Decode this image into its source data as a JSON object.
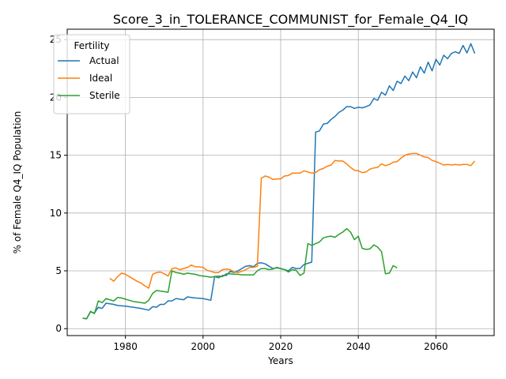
{
  "chart_data": {
    "type": "line",
    "title": "Score_3_in_TOLERANCE_COMMUNIST_for_Female_Q4_IQ",
    "xlabel": "Years",
    "ylabel": "% of Female Q4_IQ Population",
    "xlim": [
      1965,
      2075
    ],
    "ylim": [
      -0.6,
      25.9
    ],
    "xticks": [
      1980,
      2000,
      2020,
      2040,
      2060
    ],
    "yticks": [
      0,
      5,
      10,
      15,
      20,
      25
    ],
    "grid": true,
    "legend": {
      "title": "Fertility",
      "placement": "top-left"
    },
    "series": [
      {
        "name": "Actual",
        "color": "#1f77b4",
        "points": [
          [
            1969,
            0.9
          ],
          [
            1970,
            0.85
          ],
          [
            1971,
            1.45
          ],
          [
            1972,
            1.35
          ],
          [
            1973,
            1.85
          ],
          [
            1974,
            1.75
          ],
          [
            1975,
            2.2
          ],
          [
            1976,
            2.15
          ],
          [
            1977,
            2.1
          ],
          [
            1978,
            2.0
          ],
          [
            1980,
            1.95
          ],
          [
            1982,
            1.85
          ],
          [
            1984,
            1.75
          ],
          [
            1986,
            1.6
          ],
          [
            1987,
            1.9
          ],
          [
            1988,
            1.85
          ],
          [
            1989,
            2.1
          ],
          [
            1990,
            2.1
          ],
          [
            1991,
            2.4
          ],
          [
            1992,
            2.4
          ],
          [
            1993,
            2.6
          ],
          [
            1994,
            2.55
          ],
          [
            1995,
            2.5
          ],
          [
            1996,
            2.75
          ],
          [
            1997,
            2.7
          ],
          [
            1998,
            2.65
          ],
          [
            2000,
            2.6
          ],
          [
            2002,
            2.45
          ],
          [
            2003,
            4.5
          ],
          [
            2004,
            4.4
          ],
          [
            2005,
            4.6
          ],
          [
            2006,
            4.6
          ],
          [
            2007,
            4.95
          ],
          [
            2008,
            4.85
          ],
          [
            2009,
            5.0
          ],
          [
            2010,
            5.2
          ],
          [
            2011,
            5.4
          ],
          [
            2012,
            5.45
          ],
          [
            2013,
            5.35
          ],
          [
            2014,
            5.65
          ],
          [
            2015,
            5.7
          ],
          [
            2016,
            5.6
          ],
          [
            2017,
            5.4
          ],
          [
            2018,
            5.2
          ],
          [
            2019,
            5.25
          ],
          [
            2020,
            5.2
          ],
          [
            2021,
            5.1
          ],
          [
            2022,
            5.0
          ],
          [
            2023,
            5.3
          ],
          [
            2024,
            5.2
          ],
          [
            2025,
            5.2
          ],
          [
            2026,
            5.55
          ],
          [
            2027,
            5.65
          ],
          [
            2028,
            5.75
          ],
          [
            2029,
            17.0
          ],
          [
            2030,
            17.1
          ],
          [
            2031,
            17.7
          ],
          [
            2032,
            17.75
          ],
          [
            2033,
            18.1
          ],
          [
            2034,
            18.35
          ],
          [
            2035,
            18.7
          ],
          [
            2036,
            18.9
          ],
          [
            2037,
            19.2
          ],
          [
            2038,
            19.2
          ],
          [
            2039,
            19.05
          ],
          [
            2040,
            19.15
          ],
          [
            2041,
            19.1
          ],
          [
            2042,
            19.2
          ],
          [
            2043,
            19.35
          ],
          [
            2044,
            19.9
          ],
          [
            2045,
            19.75
          ],
          [
            2046,
            20.45
          ],
          [
            2047,
            20.2
          ],
          [
            2048,
            21.0
          ],
          [
            2049,
            20.6
          ],
          [
            2050,
            21.4
          ],
          [
            2051,
            21.2
          ],
          [
            2052,
            21.85
          ],
          [
            2053,
            21.45
          ],
          [
            2054,
            22.2
          ],
          [
            2055,
            21.7
          ],
          [
            2056,
            22.65
          ],
          [
            2057,
            22.1
          ],
          [
            2058,
            23.05
          ],
          [
            2059,
            22.3
          ],
          [
            2060,
            23.3
          ],
          [
            2061,
            22.8
          ],
          [
            2062,
            23.65
          ],
          [
            2063,
            23.35
          ],
          [
            2064,
            23.8
          ],
          [
            2065,
            23.95
          ],
          [
            2066,
            23.8
          ],
          [
            2067,
            24.5
          ],
          [
            2068,
            23.85
          ],
          [
            2069,
            24.65
          ],
          [
            2070,
            23.8
          ]
        ]
      },
      {
        "name": "Ideal",
        "color": "#ff7f0e",
        "points": [
          [
            1976,
            4.35
          ],
          [
            1977,
            4.1
          ],
          [
            1978,
            4.5
          ],
          [
            1979,
            4.8
          ],
          [
            1980,
            4.7
          ],
          [
            1981,
            4.5
          ],
          [
            1982,
            4.3
          ],
          [
            1983,
            4.1
          ],
          [
            1984,
            3.95
          ],
          [
            1985,
            3.7
          ],
          [
            1986,
            3.5
          ],
          [
            1987,
            4.7
          ],
          [
            1988,
            4.85
          ],
          [
            1989,
            4.9
          ],
          [
            1990,
            4.75
          ],
          [
            1991,
            4.55
          ],
          [
            1992,
            5.2
          ],
          [
            1993,
            5.25
          ],
          [
            1994,
            5.1
          ],
          [
            1995,
            5.2
          ],
          [
            1996,
            5.3
          ],
          [
            1997,
            5.5
          ],
          [
            1998,
            5.35
          ],
          [
            1999,
            5.35
          ],
          [
            2000,
            5.3
          ],
          [
            2001,
            5.05
          ],
          [
            2002,
            4.95
          ],
          [
            2003,
            4.85
          ],
          [
            2004,
            4.85
          ],
          [
            2005,
            5.1
          ],
          [
            2006,
            5.15
          ],
          [
            2007,
            5.1
          ],
          [
            2008,
            4.9
          ],
          [
            2009,
            4.85
          ],
          [
            2010,
            4.95
          ],
          [
            2011,
            5.1
          ],
          [
            2012,
            5.3
          ],
          [
            2013,
            5.3
          ],
          [
            2014,
            5.4
          ],
          [
            2015,
            13.0
          ],
          [
            2016,
            13.2
          ],
          [
            2017,
            13.1
          ],
          [
            2018,
            12.9
          ],
          [
            2019,
            12.95
          ],
          [
            2020,
            12.95
          ],
          [
            2021,
            13.2
          ],
          [
            2022,
            13.25
          ],
          [
            2023,
            13.45
          ],
          [
            2024,
            13.45
          ],
          [
            2025,
            13.45
          ],
          [
            2026,
            13.65
          ],
          [
            2027,
            13.55
          ],
          [
            2028,
            13.45
          ],
          [
            2029,
            13.5
          ],
          [
            2030,
            13.75
          ],
          [
            2031,
            13.85
          ],
          [
            2032,
            14.05
          ],
          [
            2033,
            14.15
          ],
          [
            2034,
            14.55
          ],
          [
            2035,
            14.5
          ],
          [
            2036,
            14.5
          ],
          [
            2037,
            14.25
          ],
          [
            2038,
            13.95
          ],
          [
            2039,
            13.7
          ],
          [
            2040,
            13.65
          ],
          [
            2041,
            13.5
          ],
          [
            2042,
            13.55
          ],
          [
            2043,
            13.8
          ],
          [
            2044,
            13.9
          ],
          [
            2045,
            13.95
          ],
          [
            2046,
            14.25
          ],
          [
            2047,
            14.1
          ],
          [
            2048,
            14.2
          ],
          [
            2049,
            14.4
          ],
          [
            2050,
            14.45
          ],
          [
            2051,
            14.75
          ],
          [
            2052,
            15.0
          ],
          [
            2053,
            15.1
          ],
          [
            2054,
            15.15
          ],
          [
            2055,
            15.15
          ],
          [
            2056,
            15.0
          ],
          [
            2057,
            14.85
          ],
          [
            2058,
            14.8
          ],
          [
            2059,
            14.55
          ],
          [
            2060,
            14.45
          ],
          [
            2061,
            14.3
          ],
          [
            2062,
            14.15
          ],
          [
            2063,
            14.2
          ],
          [
            2064,
            14.15
          ],
          [
            2065,
            14.2
          ],
          [
            2066,
            14.15
          ],
          [
            2067,
            14.2
          ],
          [
            2068,
            14.2
          ],
          [
            2069,
            14.1
          ],
          [
            2070,
            14.5
          ]
        ]
      },
      {
        "name": "Sterile",
        "color": "#2ca02c",
        "points": [
          [
            1969,
            0.9
          ],
          [
            1970,
            0.85
          ],
          [
            1971,
            1.5
          ],
          [
            1972,
            1.3
          ],
          [
            1973,
            2.4
          ],
          [
            1974,
            2.25
          ],
          [
            1975,
            2.6
          ],
          [
            1976,
            2.5
          ],
          [
            1977,
            2.4
          ],
          [
            1978,
            2.7
          ],
          [
            1979,
            2.65
          ],
          [
            1980,
            2.55
          ],
          [
            1981,
            2.45
          ],
          [
            1982,
            2.35
          ],
          [
            1983,
            2.3
          ],
          [
            1984,
            2.25
          ],
          [
            1985,
            2.2
          ],
          [
            1986,
            2.45
          ],
          [
            1987,
            3.05
          ],
          [
            1988,
            3.3
          ],
          [
            1989,
            3.25
          ],
          [
            1990,
            3.2
          ],
          [
            1991,
            3.15
          ],
          [
            1992,
            5.0
          ],
          [
            1993,
            4.85
          ],
          [
            1994,
            4.8
          ],
          [
            1995,
            4.7
          ],
          [
            1996,
            4.8
          ],
          [
            1997,
            4.75
          ],
          [
            1998,
            4.7
          ],
          [
            1999,
            4.6
          ],
          [
            2000,
            4.55
          ],
          [
            2001,
            4.5
          ],
          [
            2002,
            4.45
          ],
          [
            2003,
            4.5
          ],
          [
            2004,
            4.55
          ],
          [
            2005,
            4.5
          ],
          [
            2006,
            4.75
          ],
          [
            2007,
            4.75
          ],
          [
            2008,
            4.7
          ],
          [
            2009,
            4.7
          ],
          [
            2010,
            4.65
          ],
          [
            2011,
            4.65
          ],
          [
            2012,
            4.65
          ],
          [
            2013,
            4.65
          ],
          [
            2014,
            5.0
          ],
          [
            2015,
            5.2
          ],
          [
            2016,
            5.2
          ],
          [
            2017,
            5.1
          ],
          [
            2018,
            5.15
          ],
          [
            2019,
            5.3
          ],
          [
            2020,
            5.2
          ],
          [
            2021,
            5.1
          ],
          [
            2022,
            4.9
          ],
          [
            2023,
            5.1
          ],
          [
            2024,
            5.05
          ],
          [
            2025,
            4.6
          ],
          [
            2026,
            4.8
          ],
          [
            2027,
            7.35
          ],
          [
            2028,
            7.2
          ],
          [
            2029,
            7.35
          ],
          [
            2030,
            7.5
          ],
          [
            2031,
            7.85
          ],
          [
            2032,
            7.95
          ],
          [
            2033,
            8.0
          ],
          [
            2034,
            7.9
          ],
          [
            2035,
            8.15
          ],
          [
            2036,
            8.35
          ],
          [
            2037,
            8.65
          ],
          [
            2038,
            8.35
          ],
          [
            2039,
            7.7
          ],
          [
            2040,
            8.0
          ],
          [
            2041,
            6.95
          ],
          [
            2042,
            6.85
          ],
          [
            2043,
            6.9
          ],
          [
            2044,
            7.25
          ],
          [
            2045,
            7.05
          ],
          [
            2046,
            6.65
          ],
          [
            2047,
            4.75
          ],
          [
            2048,
            4.8
          ],
          [
            2049,
            5.45
          ],
          [
            2050,
            5.25
          ]
        ]
      }
    ]
  }
}
